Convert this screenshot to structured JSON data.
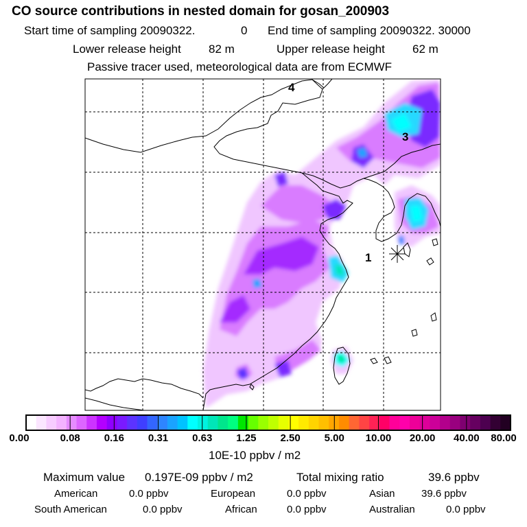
{
  "title": "CO  source contributions in nested domain for gosan_200903",
  "header": {
    "start_label": "Start time of sampling 20090322.",
    "start_hour": "0",
    "end_label": "End time of sampling 20090322. 30000",
    "lower_label": "Lower release height",
    "lower_value": "82 m",
    "upper_label": "Upper release height",
    "upper_value": "62 m",
    "tracer_note": "Passive tracer used, meteorological data are from ECMWF"
  },
  "map": {
    "region_labels": [
      "4",
      "3",
      "1"
    ],
    "receptor_marker": "asterisk"
  },
  "colorbar": {
    "labels": [
      "0.00",
      "0.08",
      "0.16",
      "0.31",
      "0.63",
      "1.25",
      "2.50",
      "5.00",
      "10.00",
      "20.00",
      "40.00",
      "80.00"
    ],
    "colors": [
      "#ffffff",
      "#fbe6ff",
      "#f7ccff",
      "#f3b3ff",
      "#e68cff",
      "#dd66ff",
      "#cc33ff",
      "#b300ff",
      "#8f00ff",
      "#7a1aff",
      "#5c33ff",
      "#3f3fff",
      "#3366ff",
      "#2e85ff",
      "#1aa3ff",
      "#00c2ff",
      "#00ffff",
      "#00f2e0",
      "#00e6b8",
      "#00e68c",
      "#00ff80",
      "#00e600",
      "#66ff00",
      "#99ff00",
      "#bfff00",
      "#e6ff00",
      "#ffff00",
      "#ffea00",
      "#ffd400",
      "#ffbf00",
      "#ffa600",
      "#ff8c00",
      "#ff6633",
      "#ff4444",
      "#ff2255",
      "#ff0066",
      "#ff0099",
      "#ff00aa",
      "#ee0099",
      "#dd0099",
      "#cc0099",
      "#b3008c",
      "#99007f",
      "#7f0070",
      "#660060",
      "#4d0050",
      "#330033",
      "#220022"
    ],
    "units": "10E-10 ppbv / m2"
  },
  "stats": {
    "max_label": "Maximum value",
    "max_value": "0.197E-09 ppbv / m2",
    "total_label": "Total mixing ratio",
    "total_value": "39.6 ppbv"
  },
  "sources": [
    {
      "name": "American",
      "value": "0.0 ppbv"
    },
    {
      "name": "European",
      "value": "0.0 ppbv"
    },
    {
      "name": "Asian",
      "value": "39.6 ppbv"
    },
    {
      "name": "South American",
      "value": "0.0 ppbv"
    },
    {
      "name": "African",
      "value": "0.0 ppbv"
    },
    {
      "name": "Australian",
      "value": "0.0 ppbv"
    }
  ]
}
